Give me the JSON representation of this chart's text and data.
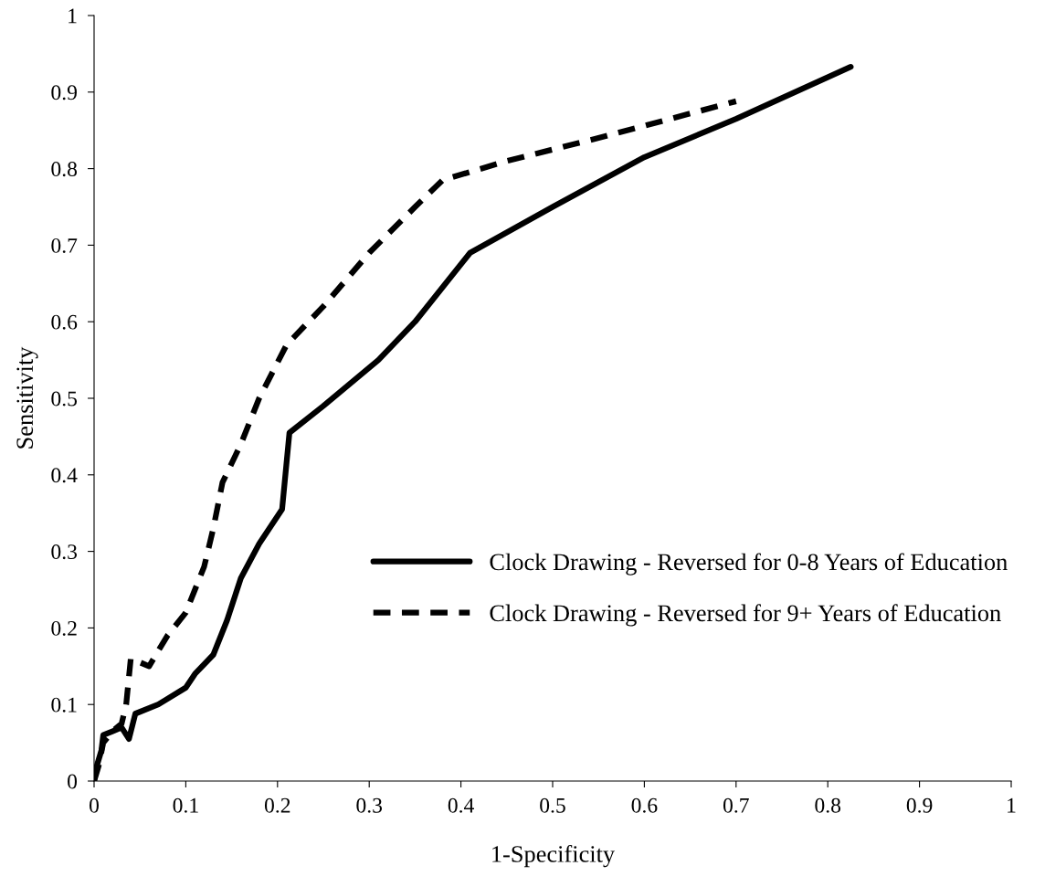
{
  "chart_data": {
    "type": "line",
    "xlabel": "1-Specificity",
    "ylabel": "Sensitivity",
    "xlim": [
      0,
      1
    ],
    "ylim": [
      0,
      1
    ],
    "xticks": [
      0,
      0.1,
      0.2,
      0.3,
      0.4,
      0.5,
      0.6,
      0.7,
      0.8,
      0.9,
      1
    ],
    "yticks": [
      0,
      0.1,
      0.2,
      0.3,
      0.4,
      0.5,
      0.6,
      0.7,
      0.8,
      0.9,
      1
    ],
    "grid": false,
    "legend": "right",
    "marker": "none",
    "series": [
      {
        "name": "Clock Drawing - Reversed for 0-8 Years of Education",
        "color": "#000000",
        "line_style": "solid",
        "x": [
          0,
          0.003,
          0.008,
          0.01,
          0.02,
          0.03,
          0.038,
          0.045,
          0.07,
          0.1,
          0.11,
          0.13,
          0.145,
          0.16,
          0.18,
          0.205,
          0.213,
          0.25,
          0.31,
          0.35,
          0.41,
          0.5,
          0.6,
          0.7,
          0.825
        ],
        "values": [
          0,
          0.02,
          0.04,
          0.06,
          0.065,
          0.07,
          0.055,
          0.088,
          0.1,
          0.122,
          0.14,
          0.165,
          0.21,
          0.265,
          0.31,
          0.355,
          0.455,
          0.49,
          0.55,
          0.6,
          0.69,
          0.75,
          0.815,
          0.865,
          0.933
        ]
      },
      {
        "name": "Clock Drawing - Reversed for 9+ Years of Education",
        "color": "#000000",
        "line_style": "dashed",
        "x": [
          0,
          0.005,
          0.01,
          0.02,
          0.03,
          0.035,
          0.04,
          0.05,
          0.06,
          0.08,
          0.1,
          0.12,
          0.13,
          0.14,
          0.16,
          0.18,
          0.21,
          0.25,
          0.3,
          0.35,
          0.38,
          0.45,
          0.55,
          0.7
        ],
        "values": [
          0,
          0.02,
          0.05,
          0.065,
          0.075,
          0.1,
          0.16,
          0.155,
          0.15,
          0.19,
          0.22,
          0.28,
          0.33,
          0.39,
          0.44,
          0.5,
          0.57,
          0.62,
          0.69,
          0.75,
          0.785,
          0.81,
          0.84,
          0.888
        ]
      }
    ]
  }
}
